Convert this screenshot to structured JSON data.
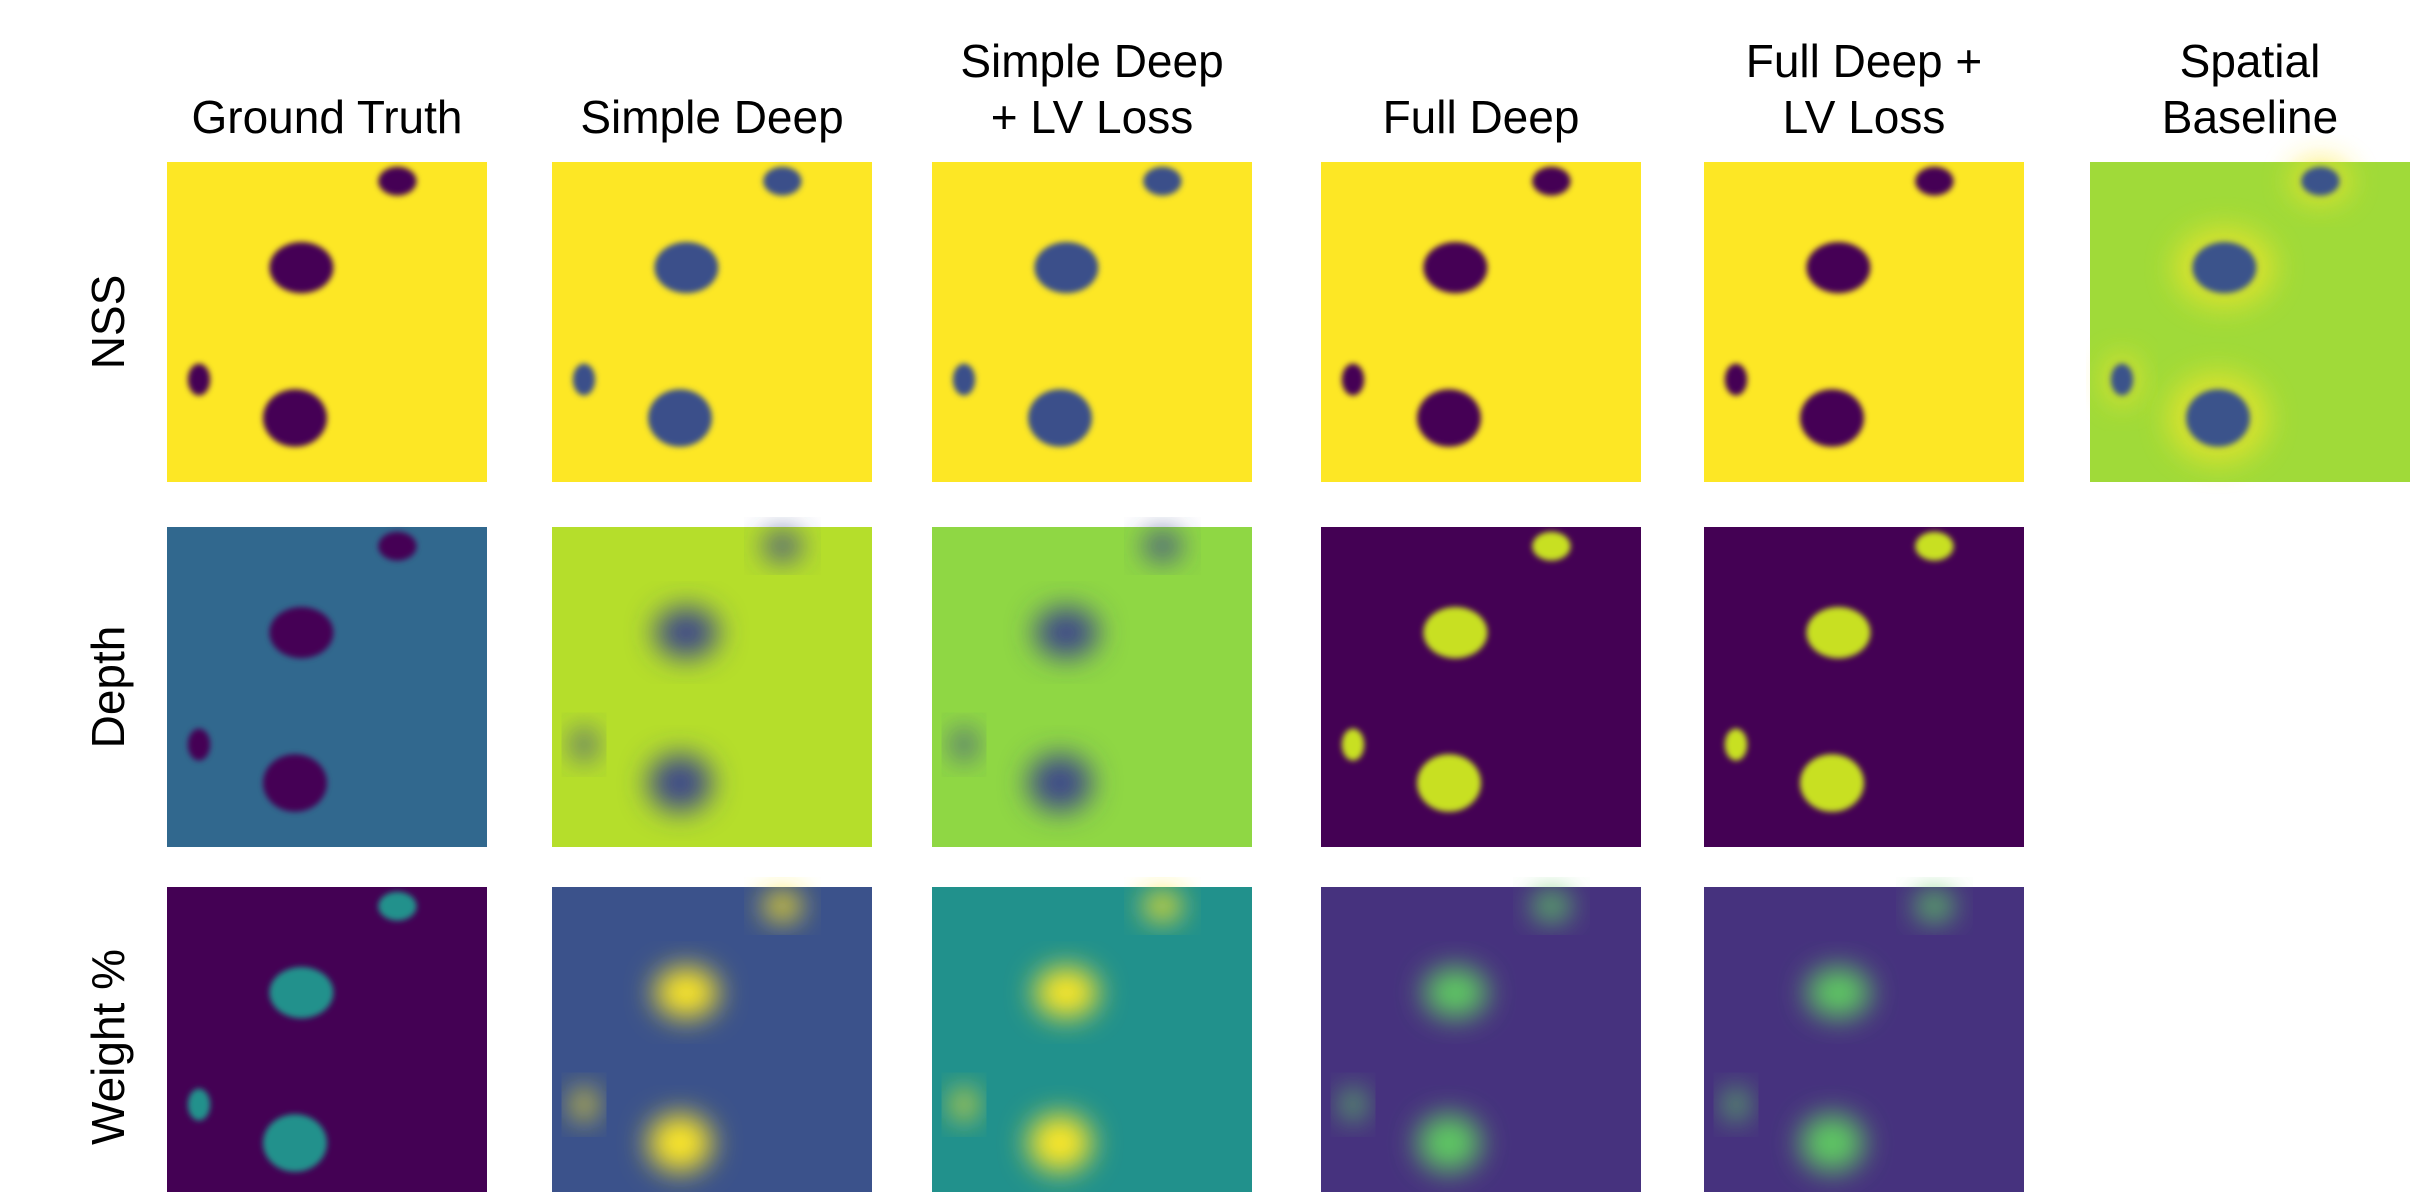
{
  "columns": [
    "Ground Truth",
    "Simple Deep",
    "Simple Deep\n+ LV Loss",
    "Full Deep",
    "Full Deep +\nLV Loss",
    "Spatial\nBaseline"
  ],
  "rows": [
    "NSS",
    "Depth",
    "Weight %"
  ]
}
